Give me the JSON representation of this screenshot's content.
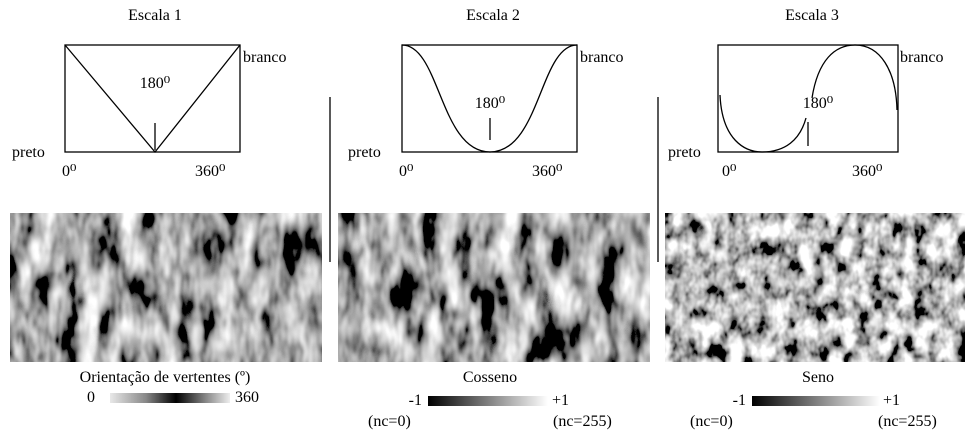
{
  "panels": [
    {
      "title": "Escala 1",
      "left_label": "preto",
      "right_label": "branco",
      "x_start": "0⁰",
      "x_end": "360⁰",
      "mid_label": "180⁰",
      "caption": "Orientação de vertentes (º)",
      "scale_min": "0",
      "scale_max": "360"
    },
    {
      "title": "Escala 2",
      "left_label": "preto",
      "right_label": "branco",
      "x_start": "0⁰",
      "x_end": "360⁰",
      "mid_label": "180⁰",
      "caption": "Cosseno",
      "scale_min": "-1",
      "scale_max": "+1",
      "nc_min": "(nc=0)",
      "nc_max": "(nc=255)"
    },
    {
      "title": "Escala 3",
      "left_label": "preto",
      "right_label": "branco",
      "x_start": "0⁰",
      "x_end": "360⁰",
      "mid_label": "180⁰",
      "caption": "Seno",
      "scale_min": "-1",
      "scale_max": "+1",
      "nc_min": "(nc=0)",
      "nc_max": "(nc=255)"
    }
  ]
}
